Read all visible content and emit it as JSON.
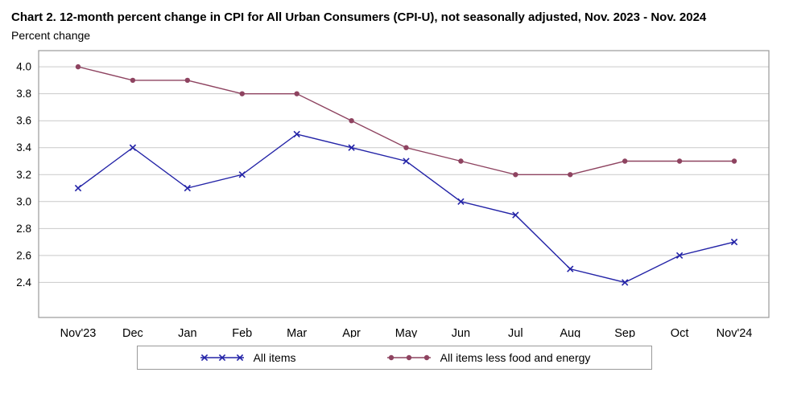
{
  "chart_data": {
    "type": "line",
    "title": "Chart 2. 12-month percent change in CPI for All Urban Consumers (CPI-U), not seasonally adjusted, Nov. 2023 - Nov. 2024",
    "ylabel": "Percent change",
    "xlabel": "",
    "categories": [
      "Nov'23",
      "Dec",
      "Jan",
      "Feb",
      "Mar",
      "Apr",
      "May",
      "Jun",
      "Jul",
      "Aug",
      "Sep",
      "Oct",
      "Nov'24"
    ],
    "series": [
      {
        "name": "All items",
        "marker": "x",
        "color": "#2323A7",
        "values": [
          3.1,
          3.4,
          3.1,
          3.2,
          3.5,
          3.4,
          3.3,
          3.0,
          2.9,
          2.5,
          2.4,
          2.6,
          2.7
        ]
      },
      {
        "name": "All items less food and energy",
        "marker": "circle",
        "color": "#8E4360",
        "values": [
          4.0,
          3.9,
          3.9,
          3.8,
          3.8,
          3.6,
          3.4,
          3.3,
          3.2,
          3.2,
          3.3,
          3.3,
          3.3
        ]
      }
    ],
    "yticks": [
      2.4,
      2.6,
      2.8,
      3.0,
      3.2,
      3.4,
      3.6,
      3.8,
      4.0
    ],
    "ylim": [
      2.14,
      4.12
    ],
    "grid": true,
    "legend_position": "bottom",
    "colors": {
      "gridline": "#c9c9c9",
      "plot_border": "#9a9a9a"
    }
  }
}
